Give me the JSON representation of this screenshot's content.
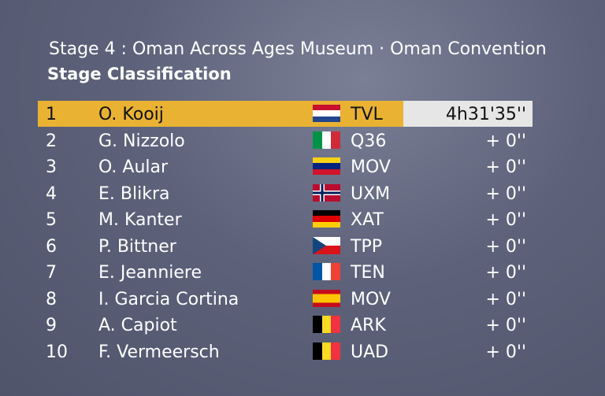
{
  "header": {
    "title": "Stage 4 : Oman Across Ages Museum · Oman Convention",
    "subtitle": "Stage Classification"
  },
  "table": {
    "rows": [
      [
        "1",
        "O. Kooij",
        "TVL",
        "4h31'35''"
      ],
      [
        "2",
        "G. Nizzolo",
        "Q36",
        "+ 0''"
      ],
      [
        "3",
        "O. Aular",
        "MOV",
        "+ 0''"
      ],
      [
        "4",
        "E. Blikra",
        "UXM",
        "+ 0''"
      ],
      [
        "5",
        "M. Kanter",
        "XAT",
        "+ 0''"
      ],
      [
        "6",
        "P. Bittner",
        "TPP",
        "+ 0''"
      ],
      [
        "7",
        "E. Jeanniere",
        "TEN",
        "+ 0''"
      ],
      [
        "8",
        "I. Garcia Cortina",
        "MOV",
        "+ 0''"
      ],
      [
        "9",
        "A. Capiot",
        "ARK",
        "+ 0''"
      ],
      [
        "10",
        "F. Vermeersch",
        "UAD",
        "+ 0''"
      ]
    ]
  }
}
